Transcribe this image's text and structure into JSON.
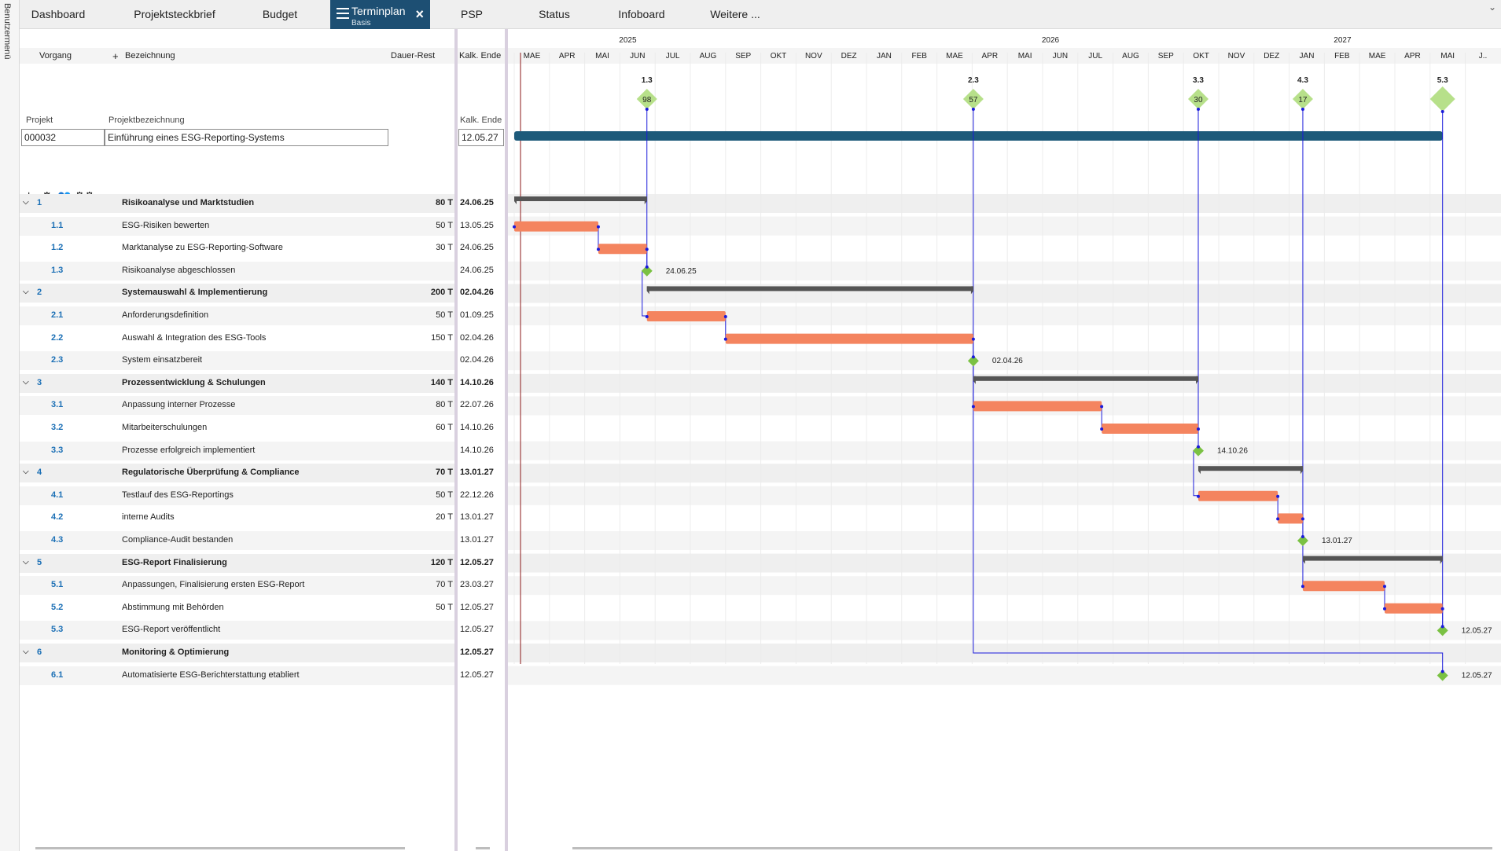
{
  "side_menu": {
    "label": "Benutzermenü"
  },
  "tabs": [
    {
      "label": "Dashboard"
    },
    {
      "label": "Projektsteckbrief"
    },
    {
      "label": "Budget"
    },
    {
      "label": "Terminplan",
      "sublabel": "Basis",
      "active": true
    },
    {
      "label": "PSP"
    },
    {
      "label": "Status"
    },
    {
      "label": "Infoboard"
    },
    {
      "label": "Weitere ..."
    }
  ],
  "table": {
    "col_vorgang": "Vorgang",
    "col_plus": "+",
    "col_bezeichnung": "Bezeichnung",
    "col_dauer": "Dauer-Rest",
    "col_ende": "Kalk. Ende"
  },
  "project": {
    "label_projekt": "Projekt",
    "label_bezeichnung": "Projektbezeichnung",
    "label_ende": "Kalk. Ende",
    "id": "000032",
    "name": "Einführung eines ESG-Reporting-Systems",
    "end": "12.05.27"
  },
  "toolbar": {
    "add_icon": "plus-icon",
    "settings_icon": "gear-icon",
    "people_icon": "people-icon",
    "settings2_icon": "gears-icon"
  },
  "rows": [
    {
      "id": "1",
      "name": "Risikoanalyse und Marktstudien",
      "dur": "80 T",
      "end": "24.06.25",
      "type": "summary"
    },
    {
      "id": "1.1",
      "name": "ESG-Risiken bewerten",
      "dur": "50 T",
      "end": "13.05.25",
      "type": "task"
    },
    {
      "id": "1.2",
      "name": "Marktanalyse zu ESG-Reporting-Software",
      "dur": "30 T",
      "end": "24.06.25",
      "type": "task"
    },
    {
      "id": "1.3",
      "name": "Risikoanalyse abgeschlossen",
      "dur": "",
      "end": "24.06.25",
      "type": "milestone"
    },
    {
      "id": "2",
      "name": "Systemauswahl & Implementierung",
      "dur": "200 T",
      "end": "02.04.26",
      "type": "summary"
    },
    {
      "id": "2.1",
      "name": "Anforderungsdefinition",
      "dur": "50 T",
      "end": "01.09.25",
      "type": "task"
    },
    {
      "id": "2.2",
      "name": "Auswahl & Integration des ESG-Tools",
      "dur": "150 T",
      "end": "02.04.26",
      "type": "task"
    },
    {
      "id": "2.3",
      "name": "System einsatzbereit",
      "dur": "",
      "end": "02.04.26",
      "type": "milestone"
    },
    {
      "id": "3",
      "name": "Prozessentwicklung & Schulungen",
      "dur": "140 T",
      "end": "14.10.26",
      "type": "summary"
    },
    {
      "id": "3.1",
      "name": "Anpassung interner Prozesse",
      "dur": "80 T",
      "end": "22.07.26",
      "type": "task"
    },
    {
      "id": "3.2",
      "name": "Mitarbeiterschulungen",
      "dur": "60 T",
      "end": "14.10.26",
      "type": "task"
    },
    {
      "id": "3.3",
      "name": "Prozesse erfolgreich implementiert",
      "dur": "",
      "end": "14.10.26",
      "type": "milestone"
    },
    {
      "id": "4",
      "name": "Regulatorische Überprüfung & Compliance",
      "dur": "70 T",
      "end": "13.01.27",
      "type": "summary"
    },
    {
      "id": "4.1",
      "name": "Testlauf des ESG-Reportings",
      "dur": "50 T",
      "end": "22.12.26",
      "type": "task"
    },
    {
      "id": "4.2",
      "name": "interne Audits",
      "dur": "20 T",
      "end": "13.01.27",
      "type": "task"
    },
    {
      "id": "4.3",
      "name": "Compliance-Audit bestanden",
      "dur": "",
      "end": "13.01.27",
      "type": "milestone"
    },
    {
      "id": "5",
      "name": "ESG-Report Finalisierung",
      "dur": "120 T",
      "end": "12.05.27",
      "type": "summary"
    },
    {
      "id": "5.1",
      "name": "Anpassungen, Finalisierung ersten ESG-Report",
      "dur": "70 T",
      "end": "23.03.27",
      "type": "task"
    },
    {
      "id": "5.2",
      "name": "Abstimmung mit Behörden",
      "dur": "50 T",
      "end": "12.05.27",
      "type": "task"
    },
    {
      "id": "5.3",
      "name": "ESG-Report veröffentlicht",
      "dur": "",
      "end": "12.05.27",
      "type": "milestone"
    },
    {
      "id": "6",
      "name": "Monitoring & Optimierung",
      "dur": "",
      "end": "12.05.27",
      "type": "summary"
    },
    {
      "id": "6.1",
      "name": "Automatisierte ESG-Berichterstattung etabliert",
      "dur": "",
      "end": "12.05.27",
      "type": "milestone"
    }
  ],
  "timeline": {
    "years": [
      "2025",
      "2026",
      "2027"
    ],
    "months": [
      "MAE",
      "APR",
      "MAI",
      "JUN",
      "JUL",
      "AUG",
      "SEP",
      "OKT",
      "NOV",
      "DEZ",
      "JAN",
      "FEB",
      "MAE",
      "APR",
      "MAI",
      "JUN",
      "JUL",
      "AUG",
      "SEP",
      "OKT",
      "NOV",
      "DEZ",
      "JAN",
      "FEB",
      "MAE",
      "APR",
      "MAI",
      "J.."
    ],
    "start": "2025-03-01",
    "months_count": 27.6
  },
  "gantt_tasks": [
    {
      "row": 0,
      "type": "summary",
      "start": "2025-03-01",
      "end": "2025-06-24"
    },
    {
      "row": 1,
      "type": "task",
      "start": "2025-03-01",
      "end": "2025-05-13"
    },
    {
      "row": 2,
      "type": "task",
      "start": "2025-05-13",
      "end": "2025-06-24"
    },
    {
      "row": 3,
      "type": "milestone",
      "date": "2025-06-24",
      "label": "24.06.25"
    },
    {
      "row": 4,
      "type": "summary",
      "start": "2025-06-24",
      "end": "2026-04-02"
    },
    {
      "row": 5,
      "type": "task",
      "start": "2025-06-24",
      "end": "2025-09-01"
    },
    {
      "row": 6,
      "type": "task",
      "start": "2025-09-01",
      "end": "2026-04-02"
    },
    {
      "row": 7,
      "type": "milestone",
      "date": "2026-04-02",
      "label": "02.04.26"
    },
    {
      "row": 8,
      "type": "summary",
      "start": "2026-04-02",
      "end": "2026-10-14"
    },
    {
      "row": 9,
      "type": "task",
      "start": "2026-04-02",
      "end": "2026-07-22"
    },
    {
      "row": 10,
      "type": "task",
      "start": "2026-07-22",
      "end": "2026-10-14"
    },
    {
      "row": 11,
      "type": "milestone",
      "date": "2026-10-14",
      "label": "14.10.26"
    },
    {
      "row": 12,
      "type": "summary",
      "start": "2026-10-14",
      "end": "2027-01-13"
    },
    {
      "row": 13,
      "type": "task",
      "start": "2026-10-14",
      "end": "2026-12-22"
    },
    {
      "row": 14,
      "type": "task",
      "start": "2026-12-22",
      "end": "2027-01-13"
    },
    {
      "row": 15,
      "type": "milestone",
      "date": "2027-01-13",
      "label": "13.01.27"
    },
    {
      "row": 16,
      "type": "summary",
      "start": "2027-01-13",
      "end": "2027-05-12"
    },
    {
      "row": 17,
      "type": "task",
      "start": "2027-01-13",
      "end": "2027-03-23"
    },
    {
      "row": 18,
      "type": "task",
      "start": "2027-03-23",
      "end": "2027-05-12"
    },
    {
      "row": 19,
      "type": "milestone",
      "date": "2027-05-12",
      "label": "12.05.27"
    },
    {
      "row": 21,
      "type": "milestone",
      "date": "2027-05-12",
      "label": "12.05.27"
    }
  ],
  "top_milestones": [
    {
      "label": "1.3",
      "value": "98",
      "date": "2025-06-24"
    },
    {
      "label": "2.3",
      "value": "57",
      "date": "2026-04-02"
    },
    {
      "label": "3.3",
      "value": "30",
      "date": "2026-10-14"
    },
    {
      "label": "4.3",
      "value": "17",
      "date": "2027-01-13"
    },
    {
      "label": "5.3",
      "value": "",
      "date": "2027-05-12"
    }
  ],
  "project_bar": {
    "start": "2025-03-01",
    "end": "2027-05-12"
  },
  "colors": {
    "accent": "#1d4f73",
    "task": "#f4845f",
    "summary": "#555555",
    "milestone": "#7ac143",
    "milestone_top": "#b7e08a",
    "link": "#1a1adb",
    "today": "#8b1a1a",
    "project_bar": "#1d5a7a"
  }
}
